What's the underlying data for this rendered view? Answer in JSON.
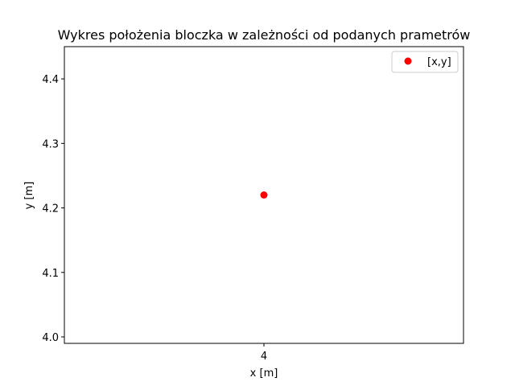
{
  "chart_data": {
    "type": "scatter",
    "title": "Wykres położenia bloczka w zależności od podanych prametrów",
    "xlabel": "x [m]",
    "ylabel": "y [m]",
    "xlim": [
      3.95,
      4.05
    ],
    "ylim": [
      3.99,
      4.45
    ],
    "x_ticks": [
      "4"
    ],
    "x_tick_values": [
      4
    ],
    "y_ticks": [
      "4.0",
      "4.1",
      "4.2",
      "4.3",
      "4.4"
    ],
    "y_tick_values": [
      4.0,
      4.1,
      4.2,
      4.3,
      4.4
    ],
    "grid": false,
    "legend_position": "top-right",
    "series": [
      {
        "name": "[x,y]",
        "color": "#ff0000",
        "marker": "circle",
        "points": [
          {
            "x": 4,
            "y": 4.22
          }
        ]
      }
    ]
  }
}
